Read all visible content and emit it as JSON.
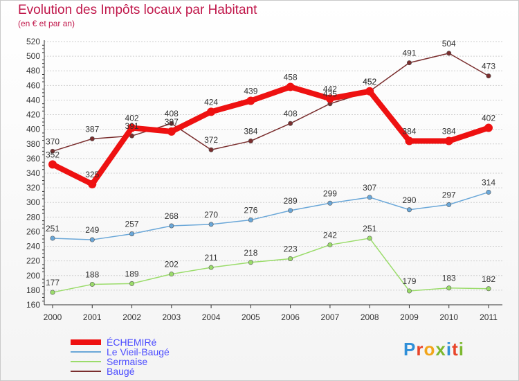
{
  "title": "Evolution des Impôts locaux par Habitant",
  "subtitle": "(en € et par an)",
  "logo_text": "Proxiti",
  "logo_colors": [
    "#2f8fd8",
    "#e8452a",
    "#f2a51a",
    "#7cb82f",
    "#2f8fd8",
    "#e8452a",
    "#7cb82f"
  ],
  "colors": {
    "title": "#c0174a",
    "axis": "#333333",
    "grid": "#cfcfcf",
    "label": "#333333"
  },
  "chart_data": {
    "type": "line",
    "x": [
      "2000",
      "2001",
      "2002",
      "2003",
      "2004",
      "2005",
      "2006",
      "2007",
      "2008",
      "2009",
      "2010",
      "2011"
    ],
    "ylim": [
      160,
      520
    ],
    "yticks": [
      160,
      180,
      200,
      220,
      240,
      260,
      280,
      300,
      320,
      340,
      360,
      380,
      400,
      420,
      440,
      460,
      480,
      500,
      520
    ],
    "grid": "horizontal",
    "legend_position": "bottom-left",
    "series": [
      {
        "name": "ÉCHEMIRé",
        "color": "#ee1111",
        "legend_text_color": "#4c4cff",
        "values": [
          352,
          325,
          402,
          397,
          424,
          439,
          458,
          442,
          452,
          384,
          384,
          402
        ],
        "labels": [
          "352",
          "325",
          "402",
          "397",
          "424",
          "439",
          "458",
          "442",
          "452",
          "384",
          "384",
          "402"
        ]
      },
      {
        "name": "Le Vieil-Baugé",
        "color": "#6aa7d8",
        "legend_text_color": "#4c4cff",
        "values": [
          251,
          249,
          257,
          268,
          270,
          276,
          289,
          299,
          307,
          290,
          297,
          314
        ],
        "labels": [
          "251",
          "249",
          "257",
          "268",
          "270",
          "276",
          "289",
          "299",
          "307",
          "290",
          "297",
          "314"
        ]
      },
      {
        "name": "Sermaise",
        "color": "#9bdc6b",
        "legend_text_color": "#4c4cff",
        "values": [
          177,
          188,
          189,
          202,
          211,
          218,
          223,
          242,
          251,
          179,
          183,
          182
        ],
        "labels": [
          "177",
          "188",
          "189",
          "202",
          "211",
          "218",
          "223",
          "242",
          "251",
          "179",
          "183",
          "182"
        ]
      },
      {
        "name": "Baugé",
        "color": "#7a2e2e",
        "legend_text_color": "#4c4cff",
        "values": [
          370,
          387,
          391,
          408,
          372,
          384,
          408,
          435,
          452,
          491,
          504,
          473
        ],
        "labels": [
          "370",
          "387",
          "391",
          "408",
          "372",
          "384",
          "408",
          "435",
          "452",
          "491",
          "504",
          "473"
        ]
      }
    ]
  }
}
